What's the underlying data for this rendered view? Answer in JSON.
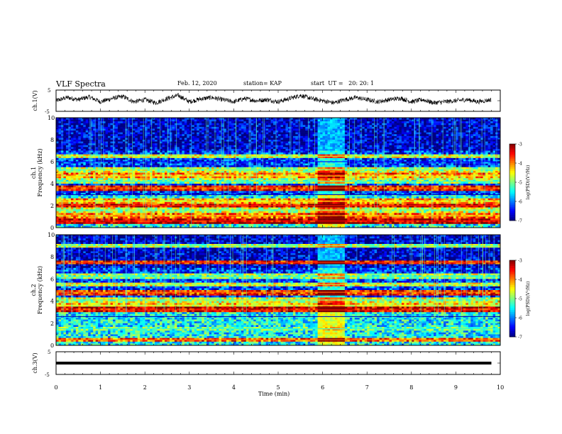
{
  "header": {
    "title": "VLF Spectra",
    "date": "Feb. 12, 2020",
    "station": "station= KAP",
    "start": "start  UT =   20: 20: 1"
  },
  "chart_data": [
    {
      "type": "line",
      "name": "ch1-waveform",
      "ylabel": "ch.1(V)",
      "ylim": [
        -5,
        5
      ],
      "yticks": [
        "5",
        "-5"
      ],
      "xlim": [
        0,
        10
      ],
      "color": "#000000",
      "trace": {
        "t": [
          0.0,
          0.25,
          0.5,
          0.75,
          1.0,
          1.25,
          1.5,
          1.75,
          2.0,
          2.25,
          2.5,
          2.75,
          3.0,
          3.25,
          3.5,
          3.75,
          4.0,
          4.25,
          4.5,
          4.75,
          5.0,
          5.25,
          5.5,
          5.75,
          6.0,
          6.25,
          6.5,
          6.75,
          7.0,
          7.25,
          7.5,
          7.75,
          8.0,
          8.25,
          8.5,
          8.75,
          9.0,
          9.25,
          9.5,
          9.8
        ],
        "v": [
          0.0,
          1.5,
          0.5,
          1.8,
          -0.5,
          1.0,
          2.0,
          -0.5,
          0.5,
          -1.0,
          1.0,
          2.5,
          -0.5,
          0.8,
          1.5,
          0.5,
          -0.5,
          1.0,
          0.0,
          0.5,
          -0.5,
          1.0,
          2.5,
          1.0,
          0.0,
          -1.0,
          0.5,
          1.5,
          0.5,
          -0.5,
          0.5,
          1.2,
          -0.5,
          0.5,
          -1.0,
          -0.5,
          0.0,
          0.5,
          -0.5,
          0.5
        ]
      }
    },
    {
      "type": "heatmap",
      "name": "ch1-spectrogram",
      "ylabel_top": "ch.1",
      "ylabel": "Frequency (kHz)",
      "ylim": [
        0,
        10
      ],
      "yticks": [
        "0",
        "2",
        "4",
        "6",
        "8",
        "10"
      ],
      "xlim": [
        0,
        10
      ],
      "colorbar": {
        "label": "log(PSD)(V²/Hz)",
        "range": [
          -7,
          -3
        ],
        "ticks": [
          "-3",
          "-4",
          "-5",
          "-6",
          "-7"
        ]
      },
      "gap_time_min": [
        5.9,
        6.47
      ],
      "bands_khz": [
        {
          "f": 0.6,
          "level": -3.5
        },
        {
          "f": 1.1,
          "level": -4.2
        },
        {
          "f": 1.6,
          "level": -5.0
        },
        {
          "f": 2.0,
          "level": -3.6
        },
        {
          "f": 2.4,
          "level": -4.5
        },
        {
          "f": 3.0,
          "level": -6.8
        },
        {
          "f": 3.6,
          "level": -3.8
        },
        {
          "f": 4.2,
          "level": -5.2
        },
        {
          "f": 4.7,
          "level": -4.4
        },
        {
          "f": 5.3,
          "level": -5.0
        },
        {
          "f": 6.5,
          "level": -4.8
        },
        {
          "f": 6.0,
          "level": -6.5
        }
      ]
    },
    {
      "type": "heatmap",
      "name": "ch2-spectrogram",
      "ylabel_top": "ch.2",
      "ylabel": "Frequency (kHz)",
      "ylim": [
        0,
        10
      ],
      "yticks": [
        "0",
        "2",
        "4",
        "6",
        "8",
        "10"
      ],
      "xlim": [
        0,
        10
      ],
      "colorbar": {
        "label": "log(PSD)(V²/Hz)",
        "range": [
          -7,
          -3
        ],
        "ticks": [
          "-3",
          "-4",
          "-5",
          "-6",
          "-7"
        ]
      },
      "gap_time_min": [
        5.9,
        6.47
      ],
      "bands_khz": [
        {
          "f": 0.5,
          "level": -4.0
        },
        {
          "f": 1.5,
          "level": -5.3
        },
        {
          "f": 2.6,
          "level": -6.8
        },
        {
          "f": 3.2,
          "level": -3.6
        },
        {
          "f": 3.6,
          "level": -4.6
        },
        {
          "f": 4.1,
          "level": -5.0
        },
        {
          "f": 4.8,
          "level": -3.9
        },
        {
          "f": 5.5,
          "level": -4.8
        },
        {
          "f": 6.2,
          "level": -5.2
        },
        {
          "f": 7.5,
          "level": -3.7
        },
        {
          "f": 9.0,
          "level": -5.0
        }
      ]
    },
    {
      "type": "line",
      "name": "ch3-waveform",
      "ylabel": "ch.3(V)",
      "ylim": [
        -5,
        5
      ],
      "yticks": [
        "5",
        "-5"
      ],
      "xlim": [
        0,
        10
      ],
      "color": "#000000",
      "trace": {
        "t": [
          0.0,
          9.8
        ],
        "v": [
          0.0,
          0.0
        ]
      }
    }
  ],
  "xaxis": {
    "label": "Time (min)",
    "ticks": [
      "0",
      "1",
      "2",
      "3",
      "4",
      "5",
      "6",
      "7",
      "8",
      "9",
      "10"
    ]
  }
}
